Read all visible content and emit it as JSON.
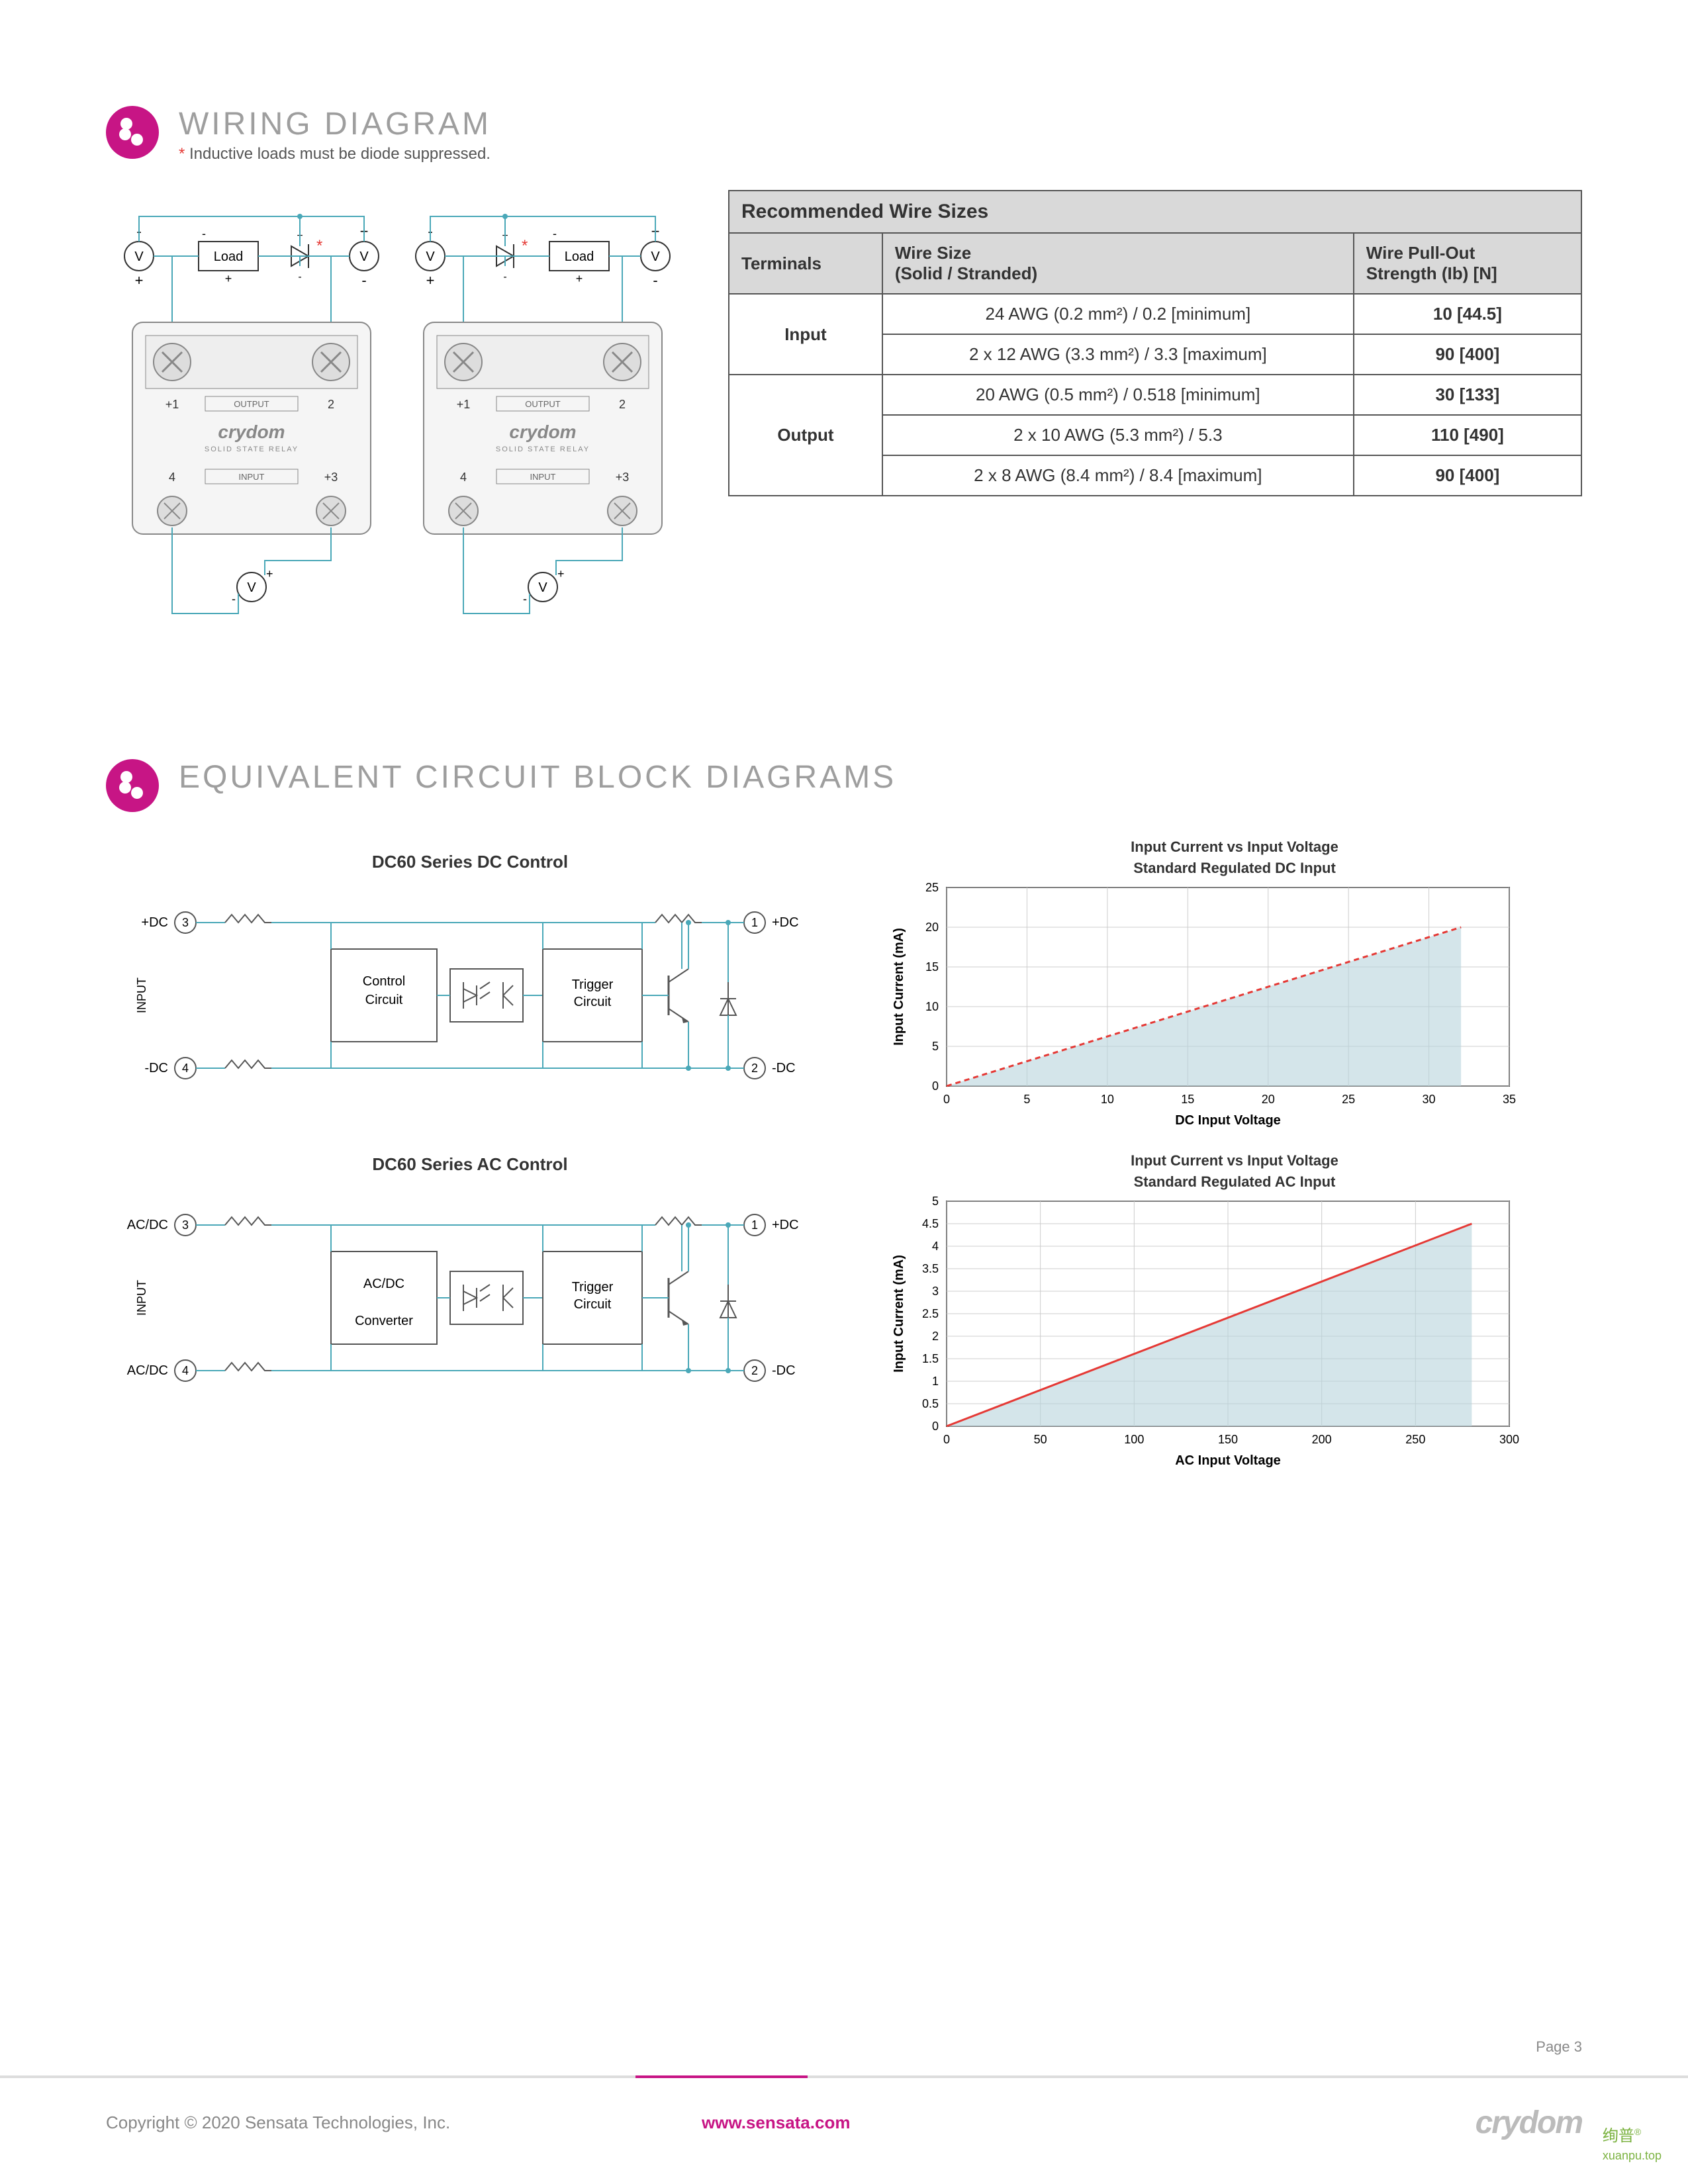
{
  "section1": {
    "title": "WIRING DIAGRAM",
    "note_prefix": "* ",
    "note": "Inductive loads must be diode suppressed."
  },
  "wiring": {
    "load_label": "Load",
    "v_label": "V",
    "relay_brand": "crydom",
    "relay_sub": "SOLID STATE RELAY",
    "output_label": "OUTPUT",
    "input_label": "INPUT",
    "pin1": "+1",
    "pin2": "2",
    "pin3": "+3",
    "pin4": "4"
  },
  "wire_table": {
    "title": "Recommended Wire Sizes",
    "headers": [
      "Terminals",
      "Wire Size\n(Solid / Stranded)",
      "Wire Pull-Out\nStrength (Ib) [N]"
    ],
    "rows": [
      {
        "term": "Input",
        "span": 2,
        "data": [
          {
            "size": "24 AWG (0.2 mm²) / 0.2 [minimum]",
            "strength": "10 [44.5]"
          },
          {
            "size": "2 x 12 AWG (3.3 mm²) / 3.3 [maximum]",
            "strength": "90 [400]"
          }
        ]
      },
      {
        "term": "Output",
        "span": 3,
        "data": [
          {
            "size": "20 AWG (0.5 mm²) / 0.518 [minimum]",
            "strength": "30 [133]"
          },
          {
            "size": "2 x 10 AWG (5.3 mm²) / 5.3",
            "strength": "110 [490]"
          },
          {
            "size": "2 x 8  AWG (8.4 mm²) / 8.4 [maximum]",
            "strength": "90 [400]"
          }
        ]
      }
    ]
  },
  "section2": {
    "title": "EQUIVALENT CIRCUIT BLOCK DIAGRAMS"
  },
  "block1": {
    "title": "DC60 Series DC Control",
    "left_top": "+DC",
    "left_bot": "-DC",
    "right_top": "+DC",
    "right_bot": "-DC",
    "pin_lt": "3",
    "pin_lb": "4",
    "pin_rt": "1",
    "pin_rb": "2",
    "side_label": "INPUT",
    "box1": "Control\nCircuit",
    "box2": "Trigger\nCircuit"
  },
  "block2": {
    "title": "DC60 Series AC Control",
    "left_top": "AC/DC",
    "left_bot": "AC/DC",
    "right_top": "+DC",
    "right_bot": "-DC",
    "pin_lt": "3",
    "pin_lb": "4",
    "pin_rt": "1",
    "pin_rb": "2",
    "side_label": "INPUT",
    "box1": "AC/DC\n\nConverter",
    "box2": "Trigger\nCircuit"
  },
  "chart1": {
    "title1": "Input Current vs Input Voltage",
    "title2": "Standard Regulated DC Input",
    "xlabel": "DC Input Voltage",
    "ylabel": "Input Current (mA)",
    "xlim": [
      0,
      35
    ],
    "ylim": [
      0,
      25
    ],
    "xticks": [
      0,
      5,
      10,
      15,
      20,
      25,
      30,
      35
    ],
    "yticks": [
      0,
      5,
      10,
      15,
      20,
      25
    ],
    "line_color": "#e53935",
    "fill_color": "#b8d4dc",
    "line_points": [
      [
        0,
        0
      ],
      [
        32,
        20
      ]
    ],
    "line_dashed": true
  },
  "chart2": {
    "title1": "Input Current vs Input Voltage",
    "title2": "Standard Regulated AC Input",
    "xlabel": "AC Input Voltage",
    "ylabel": "Input Current (mA)",
    "xlim": [
      0,
      300
    ],
    "ylim": [
      0,
      5
    ],
    "xticks": [
      0,
      50,
      100,
      150,
      200,
      250,
      300
    ],
    "yticks": [
      0,
      0.5,
      1,
      1.5,
      2,
      2.5,
      3,
      3.5,
      4,
      4.5,
      5
    ],
    "line_color": "#e53935",
    "fill_color": "#b8d4dc",
    "line_points": [
      [
        0,
        0
      ],
      [
        280,
        4.5
      ]
    ],
    "line_dashed": false
  },
  "footer": {
    "page": "Page 3",
    "copyright": "Copyright © 2020 Sensata Technologies, Inc.",
    "url": "www.sensata.com",
    "logo": "crydom"
  },
  "watermark": {
    "cn": "绚普",
    "en": "xuanpu.top"
  },
  "colors": {
    "accent": "#c71585",
    "wire": "#4aa8b8",
    "gray": "#888888",
    "box_stroke": "#555555"
  }
}
